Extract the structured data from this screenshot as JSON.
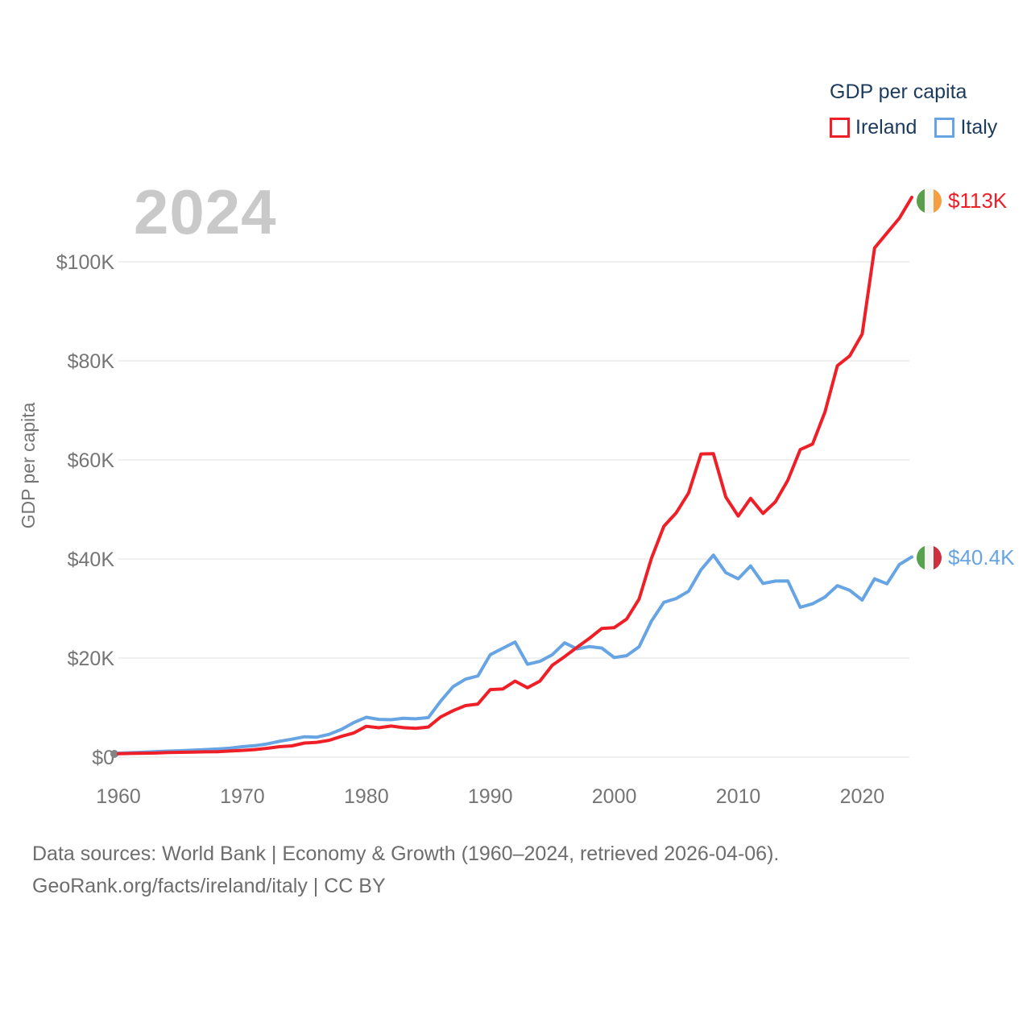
{
  "legend": {
    "title": "GDP per capita",
    "items": [
      {
        "label": "Ireland",
        "color": "#ee1f27"
      },
      {
        "label": "Italy",
        "color": "#67a4e3"
      }
    ]
  },
  "watermark_year": "2024",
  "end_labels": [
    {
      "country": "Ireland",
      "value_label": "$113K",
      "color": "#ee1f27",
      "flag_name": "ireland-flag",
      "flag_colors": [
        "#5b9e4d",
        "#f5f5f2",
        "#f59e42"
      ]
    },
    {
      "country": "Italy",
      "value_label": "$40.4K",
      "color": "#67a4e3",
      "flag_name": "italy-flag",
      "flag_colors": [
        "#57a24e",
        "#f5f5f2",
        "#cd2f3e"
      ]
    }
  ],
  "footer": {
    "line1": "Data sources: World Bank | Economy & Growth (1960–2024, retrieved 2026-04-06).",
    "line2": "GeoRank.org/facts/ireland/italy | CC BY"
  },
  "chart_data": {
    "type": "line",
    "title": "GDP per capita",
    "ylabel": "GDP per capita",
    "xlabel": "",
    "units": "thousands of current US$",
    "grid": true,
    "legend_position": "top-right",
    "xlim": [
      1960,
      2024
    ],
    "ylim": [
      0,
      115
    ],
    "x_tick_values": [
      1960,
      1970,
      1980,
      1990,
      2000,
      2010,
      2020
    ],
    "x_tick_labels": [
      "1960",
      "1970",
      "1980",
      "1990",
      "2000",
      "2010",
      "2020"
    ],
    "y_tick_values": [
      0,
      20,
      40,
      60,
      80,
      100
    ],
    "y_tick_labels": [
      "$0",
      "$20K",
      "$40K",
      "$60K",
      "$80K",
      "$100K"
    ],
    "x": [
      1960,
      1961,
      1962,
      1963,
      1964,
      1965,
      1966,
      1967,
      1968,
      1969,
      1970,
      1971,
      1972,
      1973,
      1974,
      1975,
      1976,
      1977,
      1978,
      1979,
      1980,
      1981,
      1982,
      1983,
      1984,
      1985,
      1986,
      1987,
      1988,
      1989,
      1990,
      1991,
      1992,
      1993,
      1994,
      1995,
      1996,
      1997,
      1998,
      1999,
      2000,
      2001,
      2002,
      2003,
      2004,
      2005,
      2006,
      2007,
      2008,
      2009,
      2010,
      2011,
      2012,
      2013,
      2014,
      2015,
      2016,
      2017,
      2018,
      2019,
      2020,
      2021,
      2022,
      2023,
      2024
    ],
    "series": [
      {
        "name": "Ireland",
        "color": "#ee1f27",
        "values": [
          0.69,
          0.74,
          0.79,
          0.83,
          0.92,
          0.97,
          1.01,
          1.07,
          1.1,
          1.23,
          1.37,
          1.53,
          1.79,
          2.12,
          2.28,
          2.85,
          2.99,
          3.4,
          4.19,
          4.89,
          6.22,
          5.93,
          6.27,
          5.95,
          5.81,
          6.08,
          8.12,
          9.39,
          10.4,
          10.72,
          13.64,
          13.76,
          15.35,
          14.01,
          15.35,
          18.54,
          20.29,
          22.18,
          23.98,
          25.98,
          26.15,
          27.87,
          31.9,
          40.15,
          46.6,
          49.34,
          53.33,
          61.2,
          61.26,
          52.51,
          48.67,
          52.24,
          49.18,
          51.55,
          55.9,
          62.08,
          63.2,
          69.67,
          79.0,
          81.0,
          85.4,
          102.8,
          105.8,
          108.8,
          113.0
        ]
      },
      {
        "name": "Italy",
        "color": "#67a4e3",
        "values": [
          0.8,
          0.89,
          0.99,
          1.13,
          1.22,
          1.3,
          1.4,
          1.53,
          1.65,
          1.81,
          2.11,
          2.31,
          2.67,
          3.21,
          3.62,
          4.11,
          4.03,
          4.6,
          5.61,
          6.99,
          8.05,
          7.62,
          7.56,
          7.83,
          7.74,
          7.99,
          11.32,
          14.23,
          15.74,
          16.39,
          20.69,
          21.96,
          23.24,
          18.74,
          19.34,
          20.66,
          23.08,
          21.83,
          22.32,
          22.01,
          20.09,
          20.48,
          22.27,
          27.47,
          31.26,
          32.04,
          33.5,
          37.82,
          40.78,
          37.23,
          36.0,
          38.6,
          35.05,
          35.55,
          35.57,
          30.24,
          30.96,
          32.33,
          34.62,
          33.67,
          31.71,
          36.0,
          35.0,
          38.9,
          40.4
        ]
      }
    ]
  }
}
